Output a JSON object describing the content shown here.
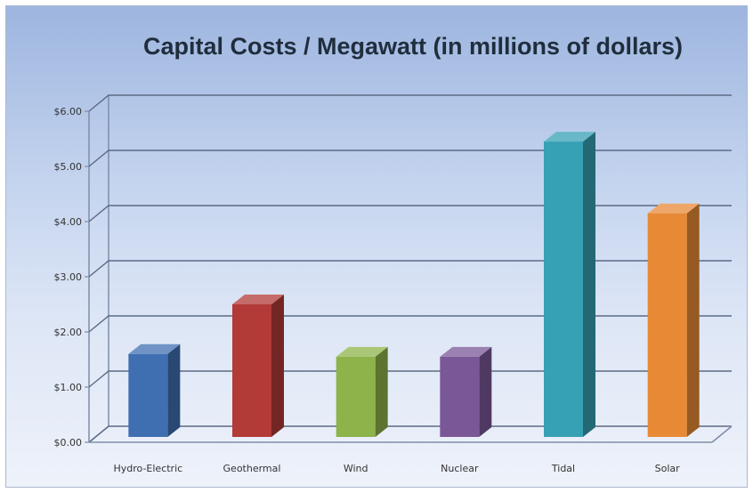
{
  "chart_data": {
    "type": "bar",
    "title": "Capital Costs / Megawatt (in millions of dollars)",
    "categories": [
      "Hydro-Electric",
      "Geothermal",
      "Wind",
      "Nuclear",
      "Tidal",
      "Solar"
    ],
    "values": [
      1.6,
      2.5,
      1.55,
      1.55,
      5.45,
      4.15
    ],
    "colors": [
      "#3f6fb1",
      "#b23a37",
      "#8db34a",
      "#7a5797",
      "#36a0b4",
      "#e88a35"
    ],
    "y_ticks": [
      "$0.00",
      "$1.00",
      "$2.00",
      "$3.00",
      "$4.00",
      "$5.00",
      "$6.00"
    ],
    "ylim": [
      0,
      6
    ],
    "grid": true,
    "style": "3d-column",
    "xlabel": "",
    "ylabel": ""
  }
}
